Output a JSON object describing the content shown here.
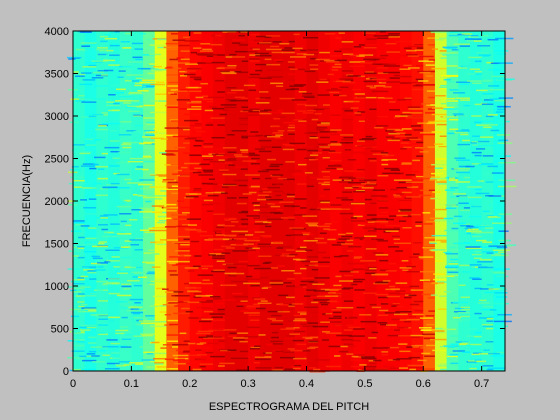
{
  "chart_data": {
    "type": "spectrogram",
    "xlabel": "ESPECTROGRAMA DEL PITCH",
    "ylabel": "FRECUENCIA(Hz)",
    "colormap": "jet",
    "x": [
      0.01,
      0.03,
      0.05,
      0.07,
      0.09,
      0.11,
      0.13,
      0.15,
      0.17,
      0.19,
      0.21,
      0.23,
      0.25,
      0.27,
      0.29,
      0.31,
      0.33,
      0.35,
      0.37,
      0.39,
      0.41,
      0.43,
      0.45,
      0.47,
      0.49,
      0.51,
      0.53,
      0.55,
      0.57,
      0.59,
      0.61,
      0.63,
      0.65,
      0.67,
      0.69,
      0.71,
      0.73
    ],
    "values": [
      0.42,
      0.4,
      0.42,
      0.41,
      0.43,
      0.42,
      0.47,
      0.6,
      0.78,
      0.85,
      0.87,
      0.88,
      0.89,
      0.9,
      0.9,
      0.89,
      0.9,
      0.9,
      0.9,
      0.89,
      0.9,
      0.89,
      0.88,
      0.89,
      0.88,
      0.89,
      0.88,
      0.88,
      0.87,
      0.86,
      0.78,
      0.58,
      0.45,
      0.42,
      0.41,
      0.42,
      0.4
    ],
    "xlim": [
      0,
      0.74
    ],
    "xticks": [
      0,
      0.1,
      0.2,
      0.3,
      0.4,
      0.5,
      0.6,
      0.7
    ],
    "ylim": [
      0,
      4000
    ],
    "yticks": [
      0,
      500,
      1000,
      1500,
      2000,
      2500,
      3000,
      3500,
      4000
    ]
  }
}
